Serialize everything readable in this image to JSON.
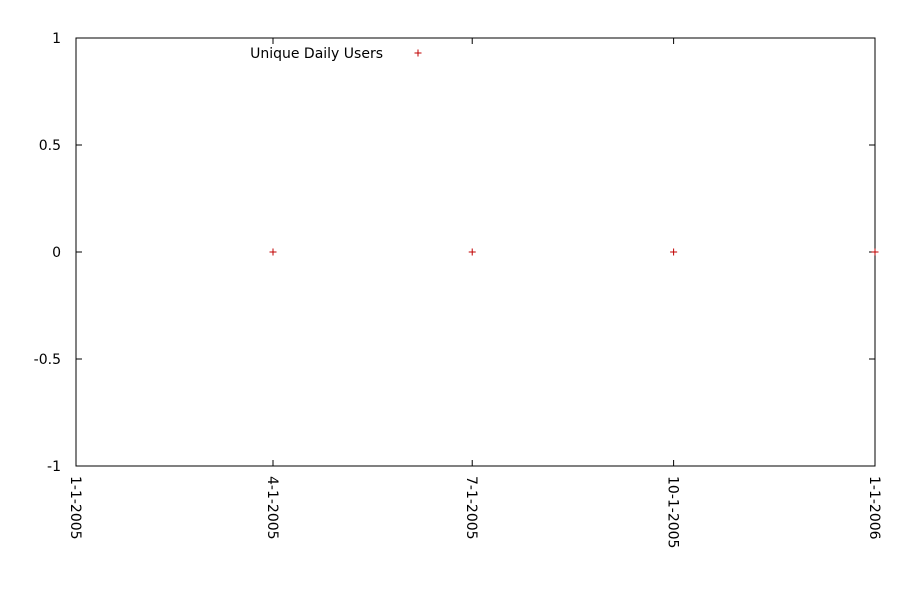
{
  "chart_data": {
    "type": "scatter",
    "title": "",
    "xlabel": "",
    "ylabel": "",
    "ylim": [
      -1,
      1
    ],
    "xlim": [
      "2005-01-01",
      "2006-01-01"
    ],
    "grid": false,
    "legend_position": "top",
    "x_ticks": [
      {
        "value": "2005-01-01",
        "label": "1-1-2005"
      },
      {
        "value": "2005-04-01",
        "label": "4-1-2005"
      },
      {
        "value": "2005-07-01",
        "label": "7-1-2005"
      },
      {
        "value": "2005-10-01",
        "label": "10-1-2005"
      },
      {
        "value": "2006-01-01",
        "label": "1-1-2006"
      }
    ],
    "y_ticks": [
      {
        "value": 1,
        "label": "1"
      },
      {
        "value": 0.5,
        "label": "0.5"
      },
      {
        "value": 0,
        "label": "0"
      },
      {
        "value": -0.5,
        "label": "-0.5"
      },
      {
        "value": -1,
        "label": "-1"
      }
    ],
    "series": [
      {
        "name": "Unique Daily Users",
        "color": "#c00000",
        "marker": "plus",
        "points": [
          {
            "x": "2005-04-01",
            "y": 0
          },
          {
            "x": "2005-07-01",
            "y": 0
          },
          {
            "x": "2005-10-01",
            "y": 0
          },
          {
            "x": "2006-01-01",
            "y": 0
          }
        ]
      }
    ]
  }
}
